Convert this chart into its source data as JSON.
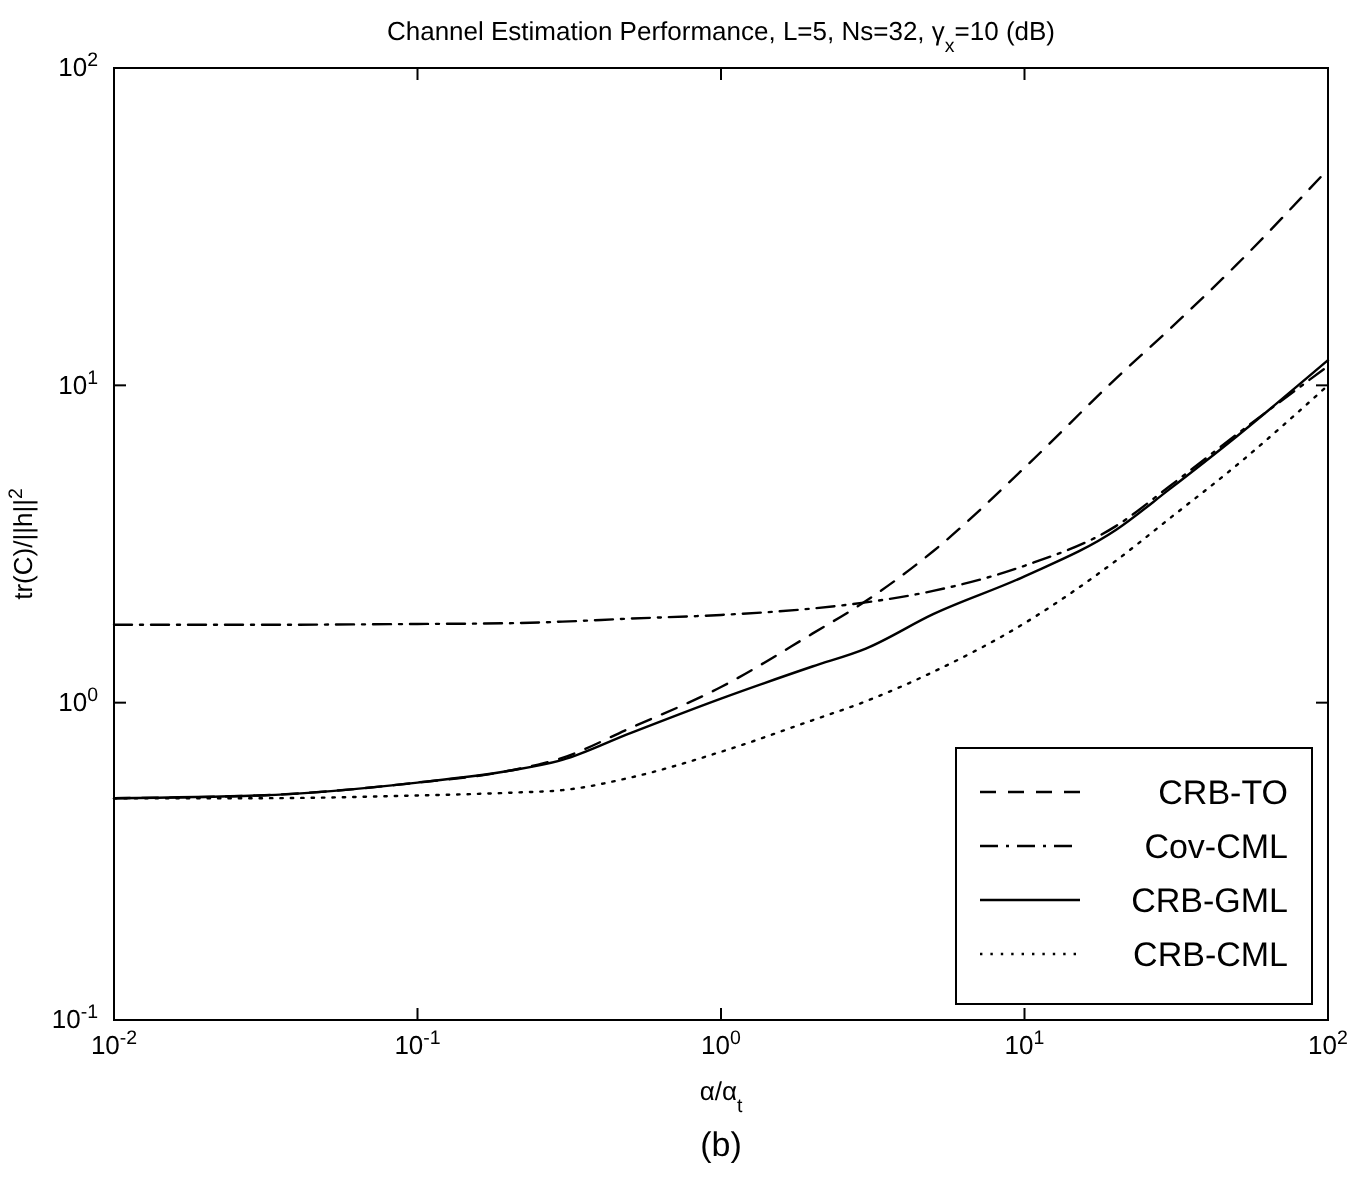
{
  "chart_data": {
    "type": "line",
    "title": "Channel Estimation Performance, L=5, Ns=32, γ$_{x}$=10 (dB)",
    "xlabel": "α/α$_{t}$",
    "ylabel": "tr(C)/||h||$^{2}$",
    "annotations": [
      "(b)"
    ],
    "log": "xy",
    "grid": false,
    "legend": "bottom right",
    "marker": "none",
    "x": [
      0.01,
      0.03,
      0.1,
      0.2,
      0.3,
      0.5,
      1,
      2,
      3,
      5,
      10,
      20,
      30,
      50,
      100
    ],
    "xlim": [
      0.01,
      100
    ],
    "ylim": [
      0.1,
      100
    ],
    "xticks": [
      {
        "value": 0.01,
        "label": "10$^{-2}$"
      },
      {
        "value": 0.1,
        "label": "10$^{-1}$"
      },
      {
        "value": 1,
        "label": "10$^{0}$"
      },
      {
        "value": 10,
        "label": "10$^{1}$"
      },
      {
        "value": 100,
        "label": "10$^{2}$"
      }
    ],
    "yticks": [
      {
        "value": 0.1,
        "label": "10$^{-1}$"
      },
      {
        "value": 1,
        "label": "10$^{0}$"
      },
      {
        "value": 10,
        "label": "10$^{1}$"
      },
      {
        "value": 100,
        "label": "10$^{2}$"
      }
    ],
    "series": [
      {
        "name": "CRB-TO",
        "color": "#000000",
        "line_style": "dashed",
        "values": [
          0.5,
          0.51,
          0.56,
          0.61,
          0.67,
          0.83,
          1.12,
          1.65,
          2.09,
          3.0,
          5.5,
          10.5,
          15,
          24,
          48
        ]
      },
      {
        "name": "Cov-CML",
        "color": "#000000",
        "line_style": "dashdot",
        "values": [
          1.76,
          1.76,
          1.77,
          1.78,
          1.8,
          1.84,
          1.89,
          1.98,
          2.07,
          2.25,
          2.7,
          3.6,
          4.8,
          7.0,
          11.5
        ]
      },
      {
        "name": "CRB-GML",
        "color": "#000000",
        "line_style": "solid",
        "values": [
          0.5,
          0.51,
          0.56,
          0.61,
          0.66,
          0.8,
          1.03,
          1.3,
          1.48,
          1.9,
          2.5,
          3.5,
          4.7,
          6.9,
          12
        ]
      },
      {
        "name": "CRB-CML",
        "color": "#000000",
        "line_style": "dotted",
        "values": [
          0.5,
          0.5,
          0.51,
          0.52,
          0.53,
          0.58,
          0.7,
          0.88,
          1.01,
          1.25,
          1.78,
          2.8,
          3.8,
          5.6,
          10
        ]
      }
    ]
  }
}
